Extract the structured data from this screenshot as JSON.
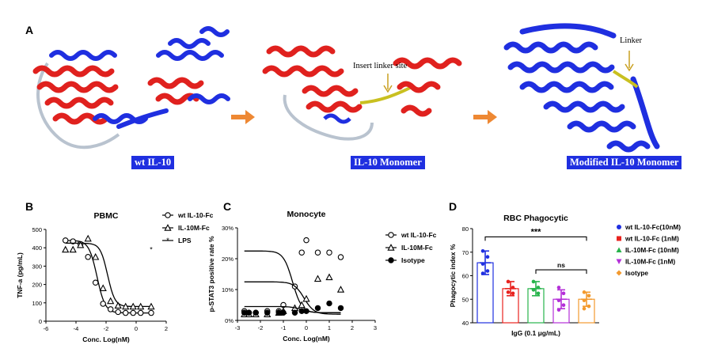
{
  "panel_labels": {
    "a": "A",
    "b": "B",
    "c": "C",
    "d": "D"
  },
  "structures": {
    "wt": "wt IL-10",
    "monomer": "IL-10 Monomer",
    "modified": "Modified IL-10 Monomer",
    "insert_site": "Insert linker site",
    "linker": "Linker"
  },
  "colors": {
    "helix": "#e0211e",
    "coil_blue": "#1f2fe0",
    "loop": "#b9c3cf",
    "linker": "#c9c020",
    "arrow": "#ee8833"
  },
  "chart_data": [
    {
      "type": "scatter",
      "title": "PBMC",
      "xlabel": "Conc. Log(nM)",
      "ylabel": "TNF-a (pg/mL)",
      "xlim": [
        -6,
        2
      ],
      "ylim": [
        0,
        500
      ],
      "xticks": [
        "-6",
        "-4",
        "-2",
        "0",
        "2"
      ],
      "yticks": [
        "0",
        "100",
        "200",
        "300",
        "400",
        "500"
      ],
      "legend": [
        "wt IL-10-Fc",
        "IL-10M-Fc",
        "LPS"
      ],
      "series": [
        {
          "name": "wt IL-10-Fc",
          "marker": "circle",
          "x": [
            -4.7,
            -4.2,
            -3.7,
            -3.2,
            -2.7,
            -2.2,
            -1.7,
            -1.2,
            -0.7,
            -0.2,
            0.3,
            1.0
          ],
          "y": [
            440,
            435,
            420,
            350,
            210,
            95,
            65,
            50,
            45,
            45,
            45,
            45
          ],
          "fit": {
            "top": 440,
            "bottom": 45,
            "ec50": -2.6,
            "hill": 1.6
          }
        },
        {
          "name": "IL-10M-Fc",
          "marker": "triangle",
          "x": [
            -4.7,
            -4.2,
            -3.7,
            -3.2,
            -2.7,
            -2.2,
            -1.7,
            -1.2,
            -0.7,
            -0.2,
            0.3,
            1.0
          ],
          "y": [
            390,
            390,
            415,
            450,
            350,
            180,
            110,
            85,
            80,
            80,
            80,
            80
          ],
          "fit": {
            "top": 425,
            "bottom": 80,
            "ec50": -1.9,
            "hill": 1.8
          }
        },
        {
          "name": "LPS",
          "marker": "star",
          "x": [
            1.0
          ],
          "y": [
            390
          ]
        }
      ]
    },
    {
      "type": "scatter",
      "title": "Monocyte",
      "xlabel": "Conc. Log(nM)",
      "ylabel": "p-STAT3 positive rate %",
      "xlim": [
        -3,
        3
      ],
      "ylim": [
        0,
        30
      ],
      "xticks": [
        "-3",
        "-2",
        "-1",
        "0",
        "1",
        "2",
        "3"
      ],
      "yticks": [
        "0%",
        "10%",
        "20%",
        "30%"
      ],
      "legend": [
        "wt IL-10-Fc",
        "IL-10M-Fc",
        "Isotype"
      ],
      "series": [
        {
          "name": "wt IL-10-Fc",
          "marker": "circle",
          "x": [
            -2.7,
            -2.5,
            -2.2,
            -1.7,
            -1.2,
            -1.0,
            -0.5,
            -0.2,
            0.0,
            0.5,
            1.0,
            1.5
          ],
          "y": [
            3,
            2.5,
            2.5,
            3,
            3,
            5,
            11,
            22,
            26,
            22,
            22,
            20.5
          ],
          "fit": {
            "top": 22.5,
            "bottom": 2.5,
            "ec50": -0.6,
            "hill": 2.2
          }
        },
        {
          "name": "IL-10M-Fc",
          "marker": "triangle",
          "x": [
            -2.7,
            -2.5,
            -2.2,
            -1.7,
            -1.2,
            -1.0,
            -0.5,
            -0.2,
            0.0,
            0.5,
            1.0,
            1.5
          ],
          "y": [
            2,
            2,
            2,
            2,
            2.5,
            3,
            4,
            5,
            7,
            13.5,
            14,
            10
          ],
          "fit": {
            "top": 12.5,
            "bottom": 2.0,
            "ec50": -0.1,
            "hill": 2.0
          }
        },
        {
          "name": "Isotype",
          "marker": "filled-circle",
          "x": [
            -2.7,
            -2.5,
            -2.2,
            -1.7,
            -1.2,
            -1.0,
            -0.5,
            -0.2,
            0.0,
            0.5,
            1.0,
            1.5
          ],
          "y": [
            2.5,
            2.5,
            2.5,
            2.5,
            2.5,
            2.5,
            2.5,
            3,
            3,
            4,
            5.5,
            4
          ],
          "fit": {
            "top": 4.5,
            "bottom": 2.5,
            "ec50": -0.2,
            "hill": 2.0
          }
        }
      ]
    },
    {
      "type": "bar",
      "title": "RBC Phagocytic",
      "xlabel": "IgG (0.1 μg/mL)",
      "ylabel": "Phagocytic index %",
      "ylim": [
        40,
        80
      ],
      "yticks": [
        "40",
        "50",
        "60",
        "70",
        "80"
      ],
      "categories": [
        "wt IL-10-Fc(10nM)",
        "wt IL-10-Fc (1nM)",
        "IL-10M-Fc (10nM)",
        "IL-10M-Fc (1nM)",
        "Isotype"
      ],
      "values": [
        65.5,
        54.5,
        54.5,
        50,
        50
      ],
      "errors": [
        5,
        3,
        3,
        4,
        3
      ],
      "points": [
        [
          70.5,
          68,
          65,
          62,
          61
        ],
        [
          57.5,
          55,
          53,
          52.5
        ],
        [
          57.5,
          55,
          54,
          52.5
        ],
        [
          55,
          52.5,
          49.5,
          47.5,
          45.5
        ],
        [
          53,
          51.5,
          49.5,
          47,
          46
        ]
      ],
      "series_colors": [
        "#1f2fe0",
        "#e8231f",
        "#27b34b",
        "#b42fd8",
        "#f39a2e"
      ],
      "markers": [
        "circle",
        "square",
        "triangle",
        "triangle-down",
        "diamond"
      ],
      "significance": [
        {
          "from": 0,
          "to": 4,
          "label": "***",
          "y": 76.5
        },
        {
          "from": 2,
          "to": 4,
          "label": "ns",
          "y": 62.5
        }
      ]
    }
  ]
}
